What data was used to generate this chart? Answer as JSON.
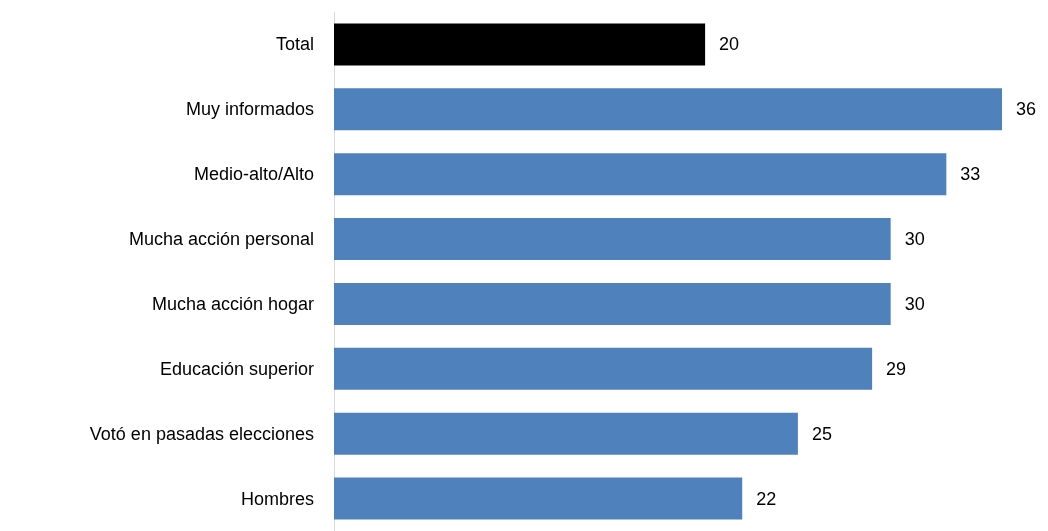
{
  "chart_data": {
    "type": "bar",
    "orientation": "horizontal",
    "categories": [
      "Total",
      "Muy informados",
      "Medio-alto/Alto",
      "Mucha acción personal",
      "Mucha acción hogar",
      "Educación superior",
      "Votó en pasadas elecciones",
      "Hombres"
    ],
    "values": [
      20,
      36,
      33,
      30,
      30,
      29,
      25,
      22
    ],
    "colors": [
      "#000000",
      "#4f81bd",
      "#4f81bd",
      "#4f81bd",
      "#4f81bd",
      "#4f81bd",
      "#4f81bd",
      "#4f81bd"
    ],
    "data_labels": true
  }
}
